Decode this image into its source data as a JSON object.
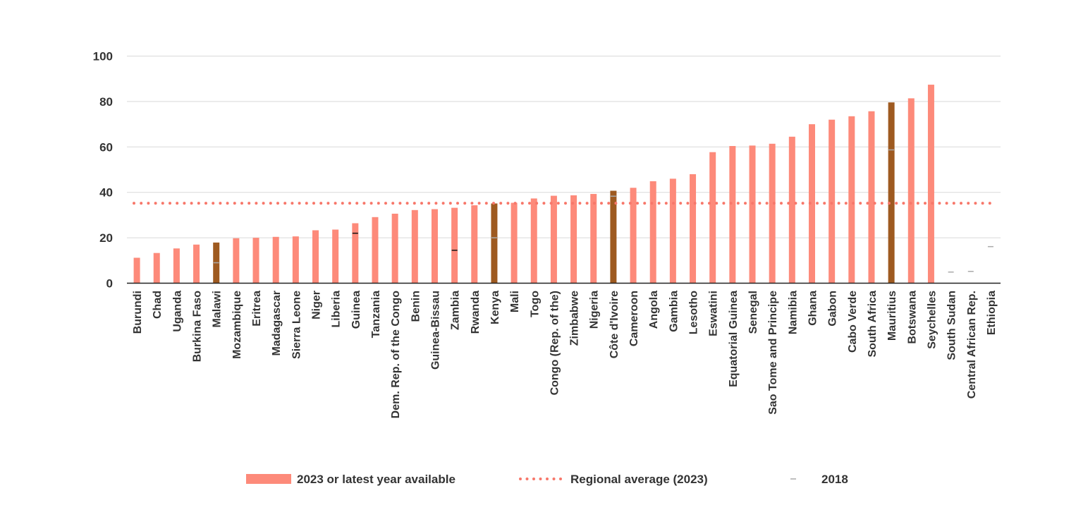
{
  "chart_data": {
    "type": "bar",
    "categories": [
      "Burundi",
      "Chad",
      "Uganda",
      "Burkina Faso",
      "Malawi",
      "Mozambique",
      "Eritrea",
      "Madagascar",
      "Sierra Leone",
      "Niger",
      "Liberia",
      "Guinea",
      "Tanzania",
      "Dem. Rep. of the Congo",
      "Benin",
      "Guinea-Bissau",
      "Zambia",
      "Rwanda",
      "Kenya",
      "Mali",
      "Togo",
      "Congo (Rep. of the)",
      "Zimbabwe",
      "Nigeria",
      "Côte d'Ivoire",
      "Cameroon",
      "Angola",
      "Gambia",
      "Lesotho",
      "Eswatini",
      "Equatorial Guinea",
      "Senegal",
      "Sao Tome and Principe",
      "Namibia",
      "Ghana",
      "Gabon",
      "Cabo Verde",
      "South Africa",
      "Mauritius",
      "Botswana",
      "Seychelles",
      "South Sudan",
      "Central African Rep.",
      "Ethiopia"
    ],
    "series": [
      {
        "name": "2023 or latest year available",
        "values": [
          11.2,
          13.3,
          15.3,
          17.0,
          17.9,
          19.8,
          20.0,
          20.4,
          20.6,
          23.3,
          23.6,
          26.4,
          29.1,
          30.6,
          32.2,
          32.6,
          33.2,
          34.3,
          35.1,
          35.4,
          37.3,
          38.5,
          38.7,
          39.3,
          40.7,
          42.0,
          44.9,
          46.0,
          48.0,
          57.7,
          60.4,
          60.6,
          61.4,
          64.5,
          70.0,
          72.0,
          73.5,
          75.7,
          79.6,
          81.4,
          87.4,
          null,
          null,
          null
        ]
      },
      {
        "name": "Regional average (2023)",
        "value": 35.2
      },
      {
        "name": "2018",
        "values": [
          null,
          null,
          null,
          null,
          9.0,
          null,
          null,
          null,
          null,
          null,
          null,
          22.0,
          null,
          null,
          null,
          null,
          14.5,
          null,
          20.0,
          null,
          null,
          null,
          null,
          null,
          38.3,
          null,
          null,
          null,
          null,
          null,
          null,
          null,
          null,
          null,
          null,
          null,
          null,
          null,
          58.7,
          null,
          null,
          4.9,
          5.2,
          16.1
        ]
      }
    ],
    "highlight": [
      "Malawi",
      "Kenya",
      "Côte d'Ivoire",
      "Mauritius"
    ],
    "y_ticks": [
      "0",
      "20",
      "40",
      "60",
      "80",
      "100"
    ],
    "ylim": [
      0,
      100
    ],
    "grid": true,
    "legend_position": "bottom",
    "colors": {
      "bar": "#fd8a7a",
      "highlight_bar": "#9e5a20",
      "average": "#f7776a",
      "marker_on_bar": "#111111",
      "marker": "#aaaaaa",
      "grid": "#d9d9d9",
      "axis": "#222222"
    }
  }
}
